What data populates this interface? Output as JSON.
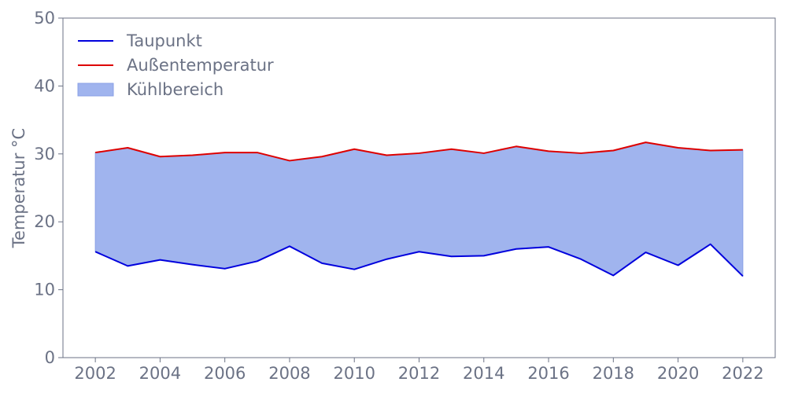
{
  "chart_data": {
    "type": "line",
    "title": "",
    "xlabel": "",
    "ylabel": "Temperatur °C",
    "xlim": [
      2001,
      2023
    ],
    "ylim": [
      0,
      50
    ],
    "xticks": [
      2002,
      2004,
      2006,
      2008,
      2010,
      2012,
      2014,
      2016,
      2018,
      2020,
      2022
    ],
    "yticks": [
      0,
      10,
      20,
      30,
      40,
      50
    ],
    "grid": false,
    "legend_position": "top-left",
    "x": [
      2002,
      2003,
      2004,
      2005,
      2006,
      2007,
      2008,
      2009,
      2010,
      2011,
      2012,
      2013,
      2014,
      2015,
      2016,
      2017,
      2018,
      2019,
      2020,
      2021,
      2022
    ],
    "series": [
      {
        "name": "Taupunkt",
        "color": "#0000dd",
        "values": [
          15.6,
          13.5,
          14.4,
          13.7,
          13.1,
          14.2,
          16.4,
          13.9,
          13.0,
          14.5,
          15.6,
          14.9,
          15.0,
          16.0,
          16.3,
          14.5,
          12.1,
          15.5,
          13.6,
          16.7,
          12.0
        ]
      },
      {
        "name": "Außentemperatur",
        "color": "#dd0000",
        "values": [
          30.2,
          30.9,
          29.6,
          29.8,
          30.2,
          30.2,
          29.0,
          29.6,
          30.7,
          29.8,
          30.1,
          30.7,
          30.1,
          31.1,
          30.4,
          30.1,
          30.5,
          31.7,
          30.9,
          30.5,
          30.6
        ]
      }
    ],
    "fill_between": {
      "name": "Kühlbereich",
      "color": "#a0b4ee",
      "edge_color": "#8aa0e6",
      "lower_series": "Taupunkt",
      "upper_series": "Außentemperatur"
    },
    "axis_color": "#6b7285"
  }
}
